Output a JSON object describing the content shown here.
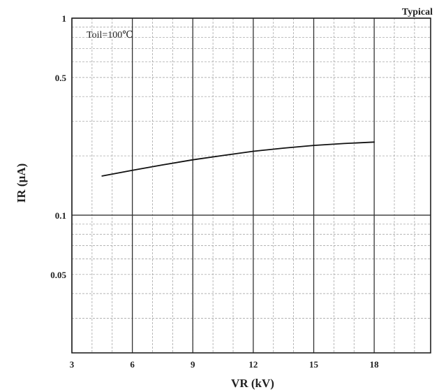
{
  "chart_data": {
    "type": "line",
    "title": "",
    "corner_note": "Typical",
    "annotation": "Toil=100℃",
    "xlabel": "VR (kV)",
    "ylabel": "IR (µA)",
    "x_scale": "linear",
    "y_scale": "log",
    "xlim": [
      3,
      20.8
    ],
    "ylim": [
      0.02,
      1
    ],
    "x_ticks": [
      3,
      6,
      9,
      12,
      15,
      18
    ],
    "x_tick_labels": [
      "3",
      "6",
      "9",
      "12",
      "15",
      "18"
    ],
    "y_ticks": [
      1,
      0.5,
      0.1,
      0.05
    ],
    "y_tick_labels": [
      "1",
      "0.5",
      "0.1",
      "0.05"
    ],
    "grid": true,
    "series": [
      {
        "x": [
          4.5,
          6,
          7.5,
          9,
          10.5,
          12,
          13.5,
          15,
          16.5,
          18
        ],
        "y": [
          0.158,
          0.169,
          0.18,
          0.191,
          0.201,
          0.211,
          0.219,
          0.226,
          0.231,
          0.235
        ]
      }
    ]
  }
}
